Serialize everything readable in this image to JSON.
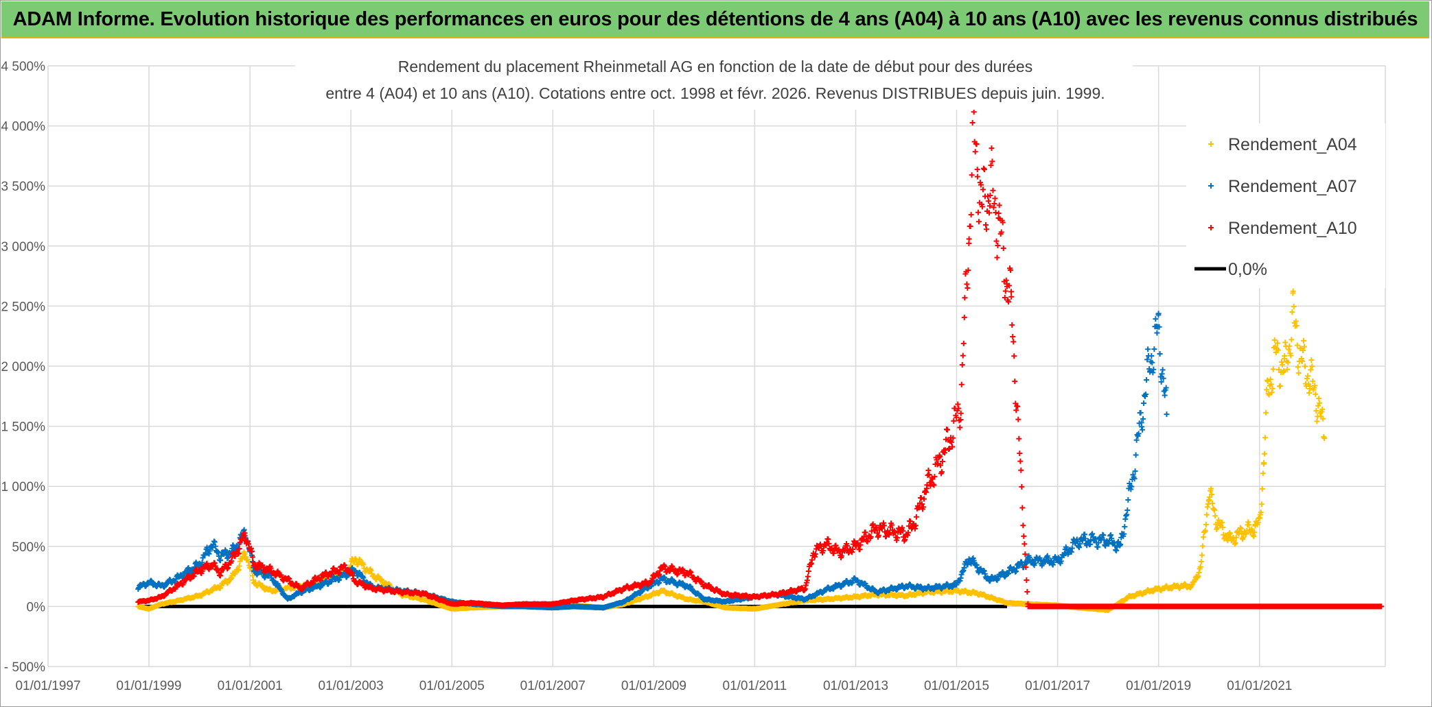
{
  "banner": {
    "title": "ADAM Informe. Evolution historique des performances en euros pour des détentions de 4 ans (A04) à 10 ans (A10) avec les revenus connus distribués"
  },
  "colors": {
    "banner_bg": "#7ccb74",
    "series_A04": "#ffc000",
    "series_A07": "#0070c0",
    "series_A10": "#ff0000",
    "zero_line": "#000000",
    "grid": "#d9d9d9"
  },
  "chart_data": {
    "type": "scatter",
    "title_line1": "Rendement du placement Rheinmetall AG en fonction de la date de début pour des durées",
    "title_line2": "entre 4 (A04) et 10 ans (A10). Cotations entre oct. 1998 et févr. 2026. Revenus DISTRIBUES depuis juin. 1999.",
    "xlim": [
      "1997-01-01",
      "2023-06-30"
    ],
    "ylim": [
      -500,
      4500
    ],
    "y_ticks": [
      -500,
      0,
      500,
      1000,
      1500,
      2000,
      2500,
      3000,
      3500,
      4000,
      4500
    ],
    "y_tick_labels": [
      "- 500%",
      "0%",
      "500%",
      "1 000%",
      "1 500%",
      "2 000%",
      "2 500%",
      "3 000%",
      "3 500%",
      "4 000%",
      "4 500%"
    ],
    "x_ticks": [
      "1997-01-01",
      "1999-01-01",
      "2001-01-01",
      "2003-01-01",
      "2005-01-01",
      "2007-01-01",
      "2009-01-01",
      "2011-01-01",
      "2013-01-01",
      "2015-01-01",
      "2017-01-01",
      "2019-01-01",
      "2021-01-01"
    ],
    "x_tick_labels": [
      "01/01/1997",
      "01/01/1999",
      "01/01/2001",
      "01/01/2003",
      "01/01/2005",
      "01/01/2007",
      "01/01/2009",
      "01/01/2011",
      "01/01/2013",
      "01/01/2015",
      "01/01/2017",
      "01/01/2019",
      "01/01/2021"
    ],
    "grid": true,
    "legend_position": "top-right",
    "legend": [
      {
        "label": "Rendement_A04",
        "marker": "plus",
        "color": "#ffc000"
      },
      {
        "label": "Rendement_A07",
        "marker": "plus",
        "color": "#0070c0"
      },
      {
        "label": "Rendement_A10",
        "marker": "plus",
        "color": "#ff0000"
      },
      {
        "label": "0,0%",
        "marker": "line",
        "color": "#000000"
      }
    ],
    "series": [
      {
        "name": "Rendement_A04",
        "color": "#ffc000",
        "x": [
          "1998-10-15",
          "1999-01-01",
          "1999-04-01",
          "1999-07-01",
          "2000-01-01",
          "2000-06-01",
          "2000-09-01",
          "2000-12-01",
          "2001-02-01",
          "2001-06-01",
          "2002-01-01",
          "2002-06-01",
          "2002-12-01",
          "2003-02-01",
          "2003-06-01",
          "2004-01-01",
          "2004-06-01",
          "2005-01-01",
          "2005-06-01",
          "2006-01-01",
          "2006-06-01",
          "2007-01-01",
          "2007-06-01",
          "2008-01-01",
          "2008-06-01",
          "2008-12-01",
          "2009-03-01",
          "2009-09-01",
          "2010-01-01",
          "2010-06-01",
          "2011-01-01",
          "2011-06-01",
          "2012-01-01",
          "2012-06-01",
          "2013-01-01",
          "2013-06-01",
          "2014-01-01",
          "2014-06-01",
          "2015-01-01",
          "2015-06-01",
          "2016-01-01",
          "2016-06-01",
          "2017-01-01",
          "2017-06-01",
          "2018-01-01",
          "2018-06-01",
          "2018-12-01",
          "2019-06-01",
          "2019-09-01",
          "2019-11-01",
          "2020-01-01",
          "2020-03-01",
          "2020-06-01",
          "2020-09-01",
          "2020-12-01",
          "2021-01-01",
          "2021-02-01",
          "2021-03-01",
          "2021-05-01",
          "2021-07-01",
          "2021-09-01",
          "2021-11-01",
          "2022-01-01",
          "2022-03-01",
          "2022-04-15"
        ],
        "values": [
          0,
          -20,
          20,
          40,
          90,
          170,
          250,
          450,
          200,
          130,
          170,
          200,
          280,
          400,
          270,
          100,
          60,
          -20,
          -10,
          0,
          10,
          20,
          10,
          -10,
          20,
          90,
          130,
          60,
          40,
          -10,
          -20,
          10,
          50,
          60,
          80,
          100,
          90,
          120,
          130,
          110,
          30,
          20,
          10,
          -10,
          -30,
          80,
          140,
          170,
          170,
          320,
          950,
          700,
          550,
          620,
          650,
          700,
          1200,
          1800,
          2100,
          1950,
          2400,
          2050,
          1900,
          1700,
          1400
        ]
      },
      {
        "name": "Rendement_A07",
        "color": "#0070c0",
        "x": [
          "1998-10-15",
          "1999-01-01",
          "1999-04-01",
          "1999-07-01",
          "2000-01-01",
          "2000-04-01",
          "2000-06-01",
          "2000-09-01",
          "2000-12-01",
          "2001-02-01",
          "2001-06-01",
          "2001-10-01",
          "2002-01-01",
          "2002-06-01",
          "2002-12-01",
          "2003-02-01",
          "2003-06-01",
          "2004-01-01",
          "2004-06-01",
          "2005-01-01",
          "2005-06-01",
          "2006-01-01",
          "2006-06-01",
          "2007-01-01",
          "2007-06-01",
          "2008-01-01",
          "2008-06-01",
          "2008-12-01",
          "2009-03-01",
          "2009-09-01",
          "2010-01-01",
          "2010-06-01",
          "2011-01-01",
          "2011-06-01",
          "2012-01-01",
          "2012-06-01",
          "2013-01-01",
          "2013-06-01",
          "2014-01-01",
          "2014-06-01",
          "2015-01-01",
          "2015-04-01",
          "2015-09-01",
          "2016-01-01",
          "2016-06-01",
          "2017-01-01",
          "2017-06-01",
          "2018-01-01",
          "2018-04-01",
          "2018-07-01",
          "2018-09-01",
          "2018-11-01",
          "2019-01-01",
          "2019-03-01"
        ],
        "values": [
          160,
          200,
          170,
          220,
          350,
          520,
          420,
          460,
          620,
          300,
          250,
          60,
          120,
          180,
          270,
          300,
          160,
          130,
          110,
          40,
          20,
          0,
          0,
          -10,
          0,
          -10,
          40,
          170,
          230,
          170,
          60,
          40,
          80,
          100,
          60,
          140,
          220,
          120,
          170,
          150,
          180,
          400,
          220,
          280,
          380,
          380,
          550,
          550,
          500,
          1100,
          1600,
          2050,
          2300,
          1600
        ]
      },
      {
        "name": "Rendement_A10",
        "color": "#ff0000",
        "x": [
          "1998-10-15",
          "1999-01-01",
          "1999-04-01",
          "1999-07-01",
          "2000-01-01",
          "2000-04-01",
          "2000-06-01",
          "2000-09-01",
          "2000-12-01",
          "2001-02-01",
          "2001-06-01",
          "2001-10-01",
          "2002-01-01",
          "2002-06-01",
          "2002-12-01",
          "2003-02-01",
          "2003-06-01",
          "2004-01-01",
          "2004-06-01",
          "2005-01-01",
          "2005-06-01",
          "2006-01-01",
          "2006-06-01",
          "2007-01-01",
          "2007-06-01",
          "2008-01-01",
          "2008-06-01",
          "2008-12-01",
          "2009-03-01",
          "2009-09-01",
          "2010-01-01",
          "2010-06-01",
          "2011-01-01",
          "2011-06-01",
          "2012-01-01",
          "2012-03-01",
          "2012-06-01",
          "2012-09-01",
          "2013-01-01",
          "2013-06-01",
          "2014-01-01",
          "2014-03-01",
          "2014-06-01",
          "2014-09-01",
          "2014-12-01",
          "2015-02-01",
          "2015-03-01",
          "2015-04-01",
          "2015-05-01",
          "2015-06-01",
          "2015-07-01",
          "2015-09-01",
          "2015-11-01",
          "2016-01-01",
          "2016-02-01",
          "2016-06-01",
          "2017-01-01",
          "2018-01-01",
          "2019-01-01",
          "2020-01-01",
          "2021-01-01",
          "2022-01-01",
          "2023-01-01",
          "2023-06-01"
        ],
        "values": [
          40,
          50,
          80,
          150,
          300,
          350,
          280,
          400,
          600,
          350,
          300,
          220,
          150,
          250,
          330,
          210,
          150,
          120,
          110,
          20,
          30,
          10,
          20,
          20,
          50,
          80,
          150,
          200,
          320,
          280,
          180,
          100,
          80,
          100,
          150,
          450,
          520,
          450,
          500,
          650,
          600,
          700,
          1000,
          1200,
          1450,
          1700,
          2400,
          3100,
          3900,
          3700,
          3300,
          3500,
          3200,
          2700,
          2500,
          0,
          0,
          0,
          0,
          0,
          0,
          0,
          0,
          0
        ]
      }
    ]
  }
}
